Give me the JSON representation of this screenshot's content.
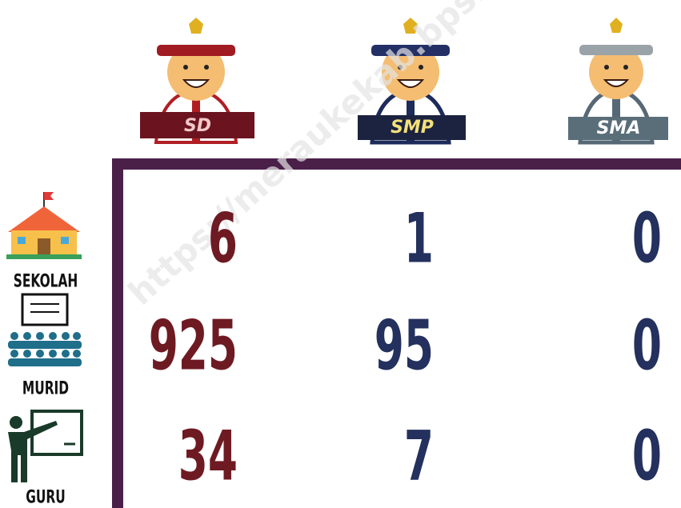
{
  "watermark": "https://meraukekab.bps.go.id",
  "table": {
    "columns": [
      "SD",
      "SMP",
      "SMA"
    ],
    "rows": [
      {
        "label": "SEKOLAH",
        "values": [
          6,
          1,
          0
        ]
      },
      {
        "label": "MURID",
        "values": [
          925,
          95,
          0
        ]
      },
      {
        "label": "GURU",
        "values": [
          34,
          7,
          0
        ]
      }
    ]
  }
}
